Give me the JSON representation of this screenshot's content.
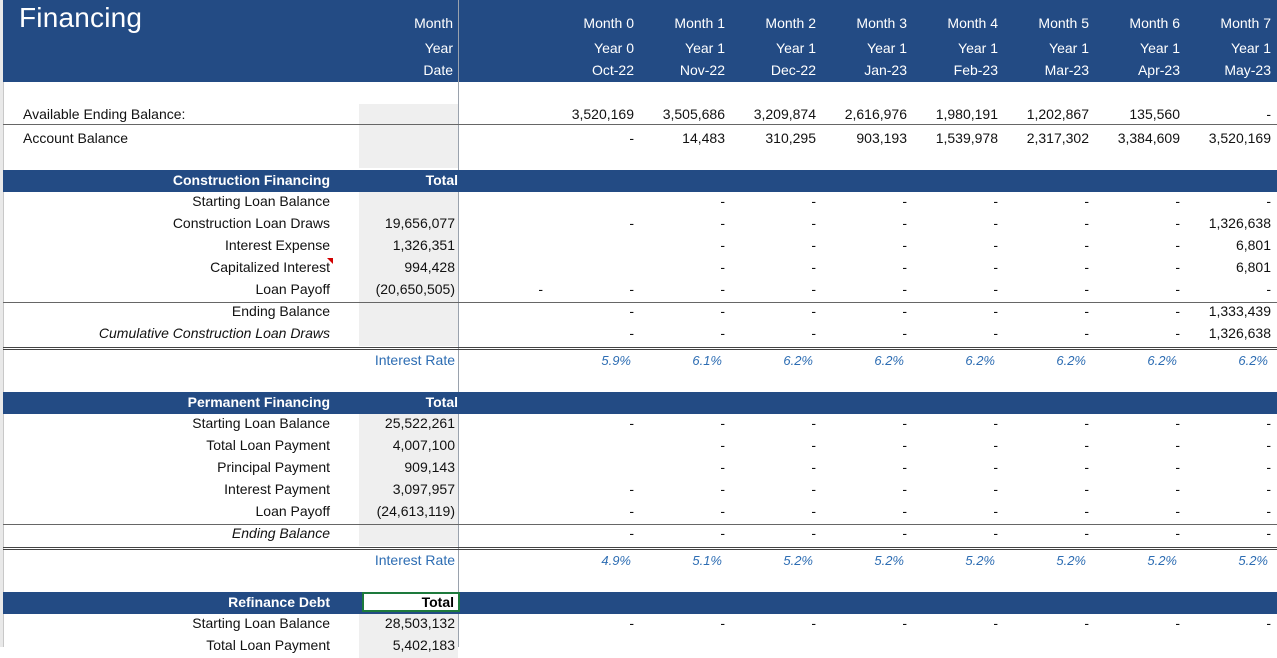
{
  "title": "Financing",
  "header_labels": [
    "Month",
    "Year",
    "Date"
  ],
  "months": [
    {
      "month": "Month 0",
      "year": "Year 0",
      "date": "Oct-22"
    },
    {
      "month": "Month 1",
      "year": "Year 1",
      "date": "Nov-22"
    },
    {
      "month": "Month 2",
      "year": "Year 1",
      "date": "Dec-22"
    },
    {
      "month": "Month 3",
      "year": "Year 1",
      "date": "Jan-23"
    },
    {
      "month": "Month 4",
      "year": "Year 1",
      "date": "Feb-23"
    },
    {
      "month": "Month 5",
      "year": "Year 1",
      "date": "Mar-23"
    },
    {
      "month": "Month 6",
      "year": "Year 1",
      "date": "Apr-23"
    },
    {
      "month": "Month 7",
      "year": "Year 1",
      "date": "May-23"
    }
  ],
  "balances": [
    {
      "label": "Available Ending Balance:",
      "values": [
        "3,520,169",
        "3,505,686",
        "3,209,874",
        "2,616,976",
        "1,980,191",
        "1,202,867",
        "135,560",
        "-"
      ]
    },
    {
      "label": "Account Balance",
      "values": [
        "-",
        "14,483",
        "310,295",
        "903,193",
        "1,539,978",
        "2,317,302",
        "3,384,609",
        "3,520,169"
      ]
    }
  ],
  "construction": {
    "title": "Construction Financing",
    "total_label": "Total",
    "rows": [
      {
        "label": "Starting Loan Balance",
        "total": "",
        "pre": "",
        "values": [
          "",
          "-",
          "-",
          "-",
          "-",
          "-",
          "-",
          "-"
        ]
      },
      {
        "label": "Construction Loan Draws",
        "total": "19,656,077",
        "pre": "",
        "values": [
          "-",
          "-",
          "-",
          "-",
          "-",
          "-",
          "-",
          "1,326,638"
        ]
      },
      {
        "label": "Interest Expense",
        "total": "1,326,351",
        "pre": "",
        "values": [
          "",
          "-",
          "-",
          "-",
          "-",
          "-",
          "-",
          "6,801"
        ]
      },
      {
        "label": "Capitalized Interest",
        "total": "994,428",
        "pre": "",
        "values": [
          "",
          "-",
          "-",
          "-",
          "-",
          "-",
          "-",
          "6,801"
        ]
      },
      {
        "label": "Loan Payoff",
        "total": "(20,650,505)",
        "pre": "-",
        "values": [
          "-",
          "-",
          "-",
          "-",
          "-",
          "-",
          "-",
          "-"
        ]
      },
      {
        "label": "Ending Balance",
        "total": "",
        "pre": "",
        "values": [
          "-",
          "-",
          "-",
          "-",
          "-",
          "-",
          "-",
          "1,333,439"
        ]
      },
      {
        "label": "Cumulative Construction Loan Draws",
        "total": "",
        "pre": "",
        "values": [
          "-",
          "-",
          "-",
          "-",
          "-",
          "-",
          "-",
          "1,326,638"
        ]
      }
    ],
    "rate_label": "Interest Rate",
    "rates": [
      "5.9%",
      "6.1%",
      "6.2%",
      "6.2%",
      "6.2%",
      "6.2%",
      "6.2%",
      "6.2%"
    ]
  },
  "permanent": {
    "title": "Permanent Financing",
    "total_label": "Total",
    "rows": [
      {
        "label": "Starting Loan Balance",
        "total": "25,522,261",
        "values": [
          "-",
          "-",
          "-",
          "-",
          "-",
          "-",
          "-",
          "-"
        ]
      },
      {
        "label": "Total Loan Payment",
        "total": "4,007,100",
        "values": [
          "",
          "-",
          "-",
          "-",
          "-",
          "-",
          "-",
          "-"
        ]
      },
      {
        "label": "Principal Payment",
        "total": "909,143",
        "values": [
          "",
          "-",
          "-",
          "-",
          "-",
          "-",
          "-",
          "-"
        ]
      },
      {
        "label": "Interest Payment",
        "total": "3,097,957",
        "values": [
          "-",
          "-",
          "-",
          "-",
          "-",
          "-",
          "-",
          "-"
        ]
      },
      {
        "label": "Loan Payoff",
        "total": "(24,613,119)",
        "values": [
          "-",
          "-",
          "-",
          "-",
          "-",
          "-",
          "-",
          "-"
        ]
      },
      {
        "label": "Ending Balance",
        "total": "",
        "values": [
          "-",
          "-",
          "-",
          "-",
          "-",
          "-",
          "-",
          "-"
        ]
      }
    ],
    "rate_label": "Interest Rate",
    "rates": [
      "4.9%",
      "5.1%",
      "5.2%",
      "5.2%",
      "5.2%",
      "5.2%",
      "5.2%",
      "5.2%"
    ]
  },
  "refinance": {
    "title": "Refinance Debt",
    "total_label": "Total",
    "rows": [
      {
        "label": "Starting Loan Balance",
        "total": "28,503,132",
        "values": [
          "-",
          "-",
          "-",
          "-",
          "-",
          "-",
          "-",
          "-"
        ]
      },
      {
        "label": "Total Loan Payment",
        "total": "5,402,183",
        "values": [
          "",
          "",
          "",
          "",
          "",
          "",
          "",
          ""
        ]
      }
    ]
  }
}
